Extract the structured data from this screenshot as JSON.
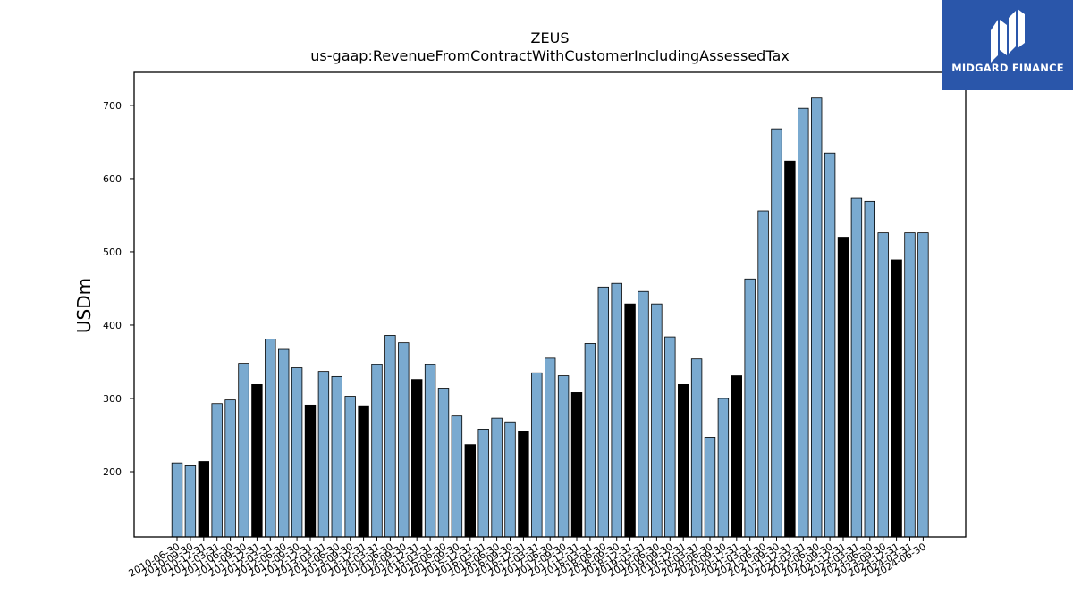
{
  "chart_data": {
    "type": "bar",
    "title": "ZEUS",
    "subtitle": "us-gaap:RevenueFromContractWithCustomerIncludingAssessedTax",
    "xlabel": "",
    "ylabel": "USDm",
    "ylim": [
      111,
      745
    ],
    "yticks": [
      200,
      300,
      400,
      500,
      600,
      700
    ],
    "grid": false,
    "colors": {
      "quarter": "#7aaad0",
      "annual": "#000000",
      "edge": "#000000"
    },
    "categories": [
      "2010-06-30",
      "2010-09-30",
      "2010-12-31",
      "2011-03-31",
      "2011-06-30",
      "2011-09-30",
      "2011-12-31",
      "2012-03-31",
      "2012-06-30",
      "2012-09-30",
      "2012-12-31",
      "2013-03-31",
      "2013-06-30",
      "2013-09-30",
      "2013-12-31",
      "2014-03-31",
      "2014-06-30",
      "2014-09-30",
      "2014-12-31",
      "2015-03-31",
      "2015-06-30",
      "2015-09-30",
      "2015-12-31",
      "2016-03-31",
      "2016-06-30",
      "2016-09-30",
      "2016-12-31",
      "2017-03-31",
      "2017-06-30",
      "2017-09-30",
      "2017-12-31",
      "2018-03-31",
      "2018-06-30",
      "2018-09-30",
      "2018-12-31",
      "2019-03-31",
      "2019-06-30",
      "2019-09-30",
      "2019-12-31",
      "2020-03-31",
      "2020-06-30",
      "2020-09-30",
      "2020-12-31",
      "2021-03-31",
      "2021-06-30",
      "2021-09-30",
      "2021-12-31",
      "2022-03-31",
      "2022-06-30",
      "2022-09-30",
      "2022-12-31",
      "2023-03-31",
      "2023-06-30",
      "2023-09-30",
      "2023-12-31",
      "2024-03-31",
      "2024-06-30"
    ],
    "values": [
      212,
      208,
      214,
      293,
      298,
      348,
      319,
      381,
      367,
      342,
      291,
      337,
      330,
      303,
      290,
      346,
      386,
      376,
      326,
      346,
      314,
      276,
      237,
      258,
      273,
      268,
      255,
      335,
      355,
      331,
      308,
      375,
      452,
      457,
      429,
      446,
      429,
      384,
      319,
      354,
      247,
      300,
      331,
      463,
      556,
      668,
      624,
      696,
      710,
      635,
      520,
      573,
      569,
      526,
      489,
      526,
      526
    ],
    "annual_flags": [
      false,
      false,
      true,
      false,
      false,
      false,
      true,
      false,
      false,
      false,
      true,
      false,
      false,
      false,
      true,
      false,
      false,
      false,
      true,
      false,
      false,
      false,
      true,
      false,
      false,
      false,
      true,
      false,
      false,
      false,
      true,
      false,
      false,
      false,
      true,
      false,
      false,
      false,
      true,
      false,
      false,
      false,
      true,
      false,
      false,
      false,
      true,
      false,
      false,
      false,
      true,
      false,
      false,
      false,
      true,
      false,
      false
    ]
  },
  "logo": {
    "text": "MIDGARD FINANCE"
  }
}
